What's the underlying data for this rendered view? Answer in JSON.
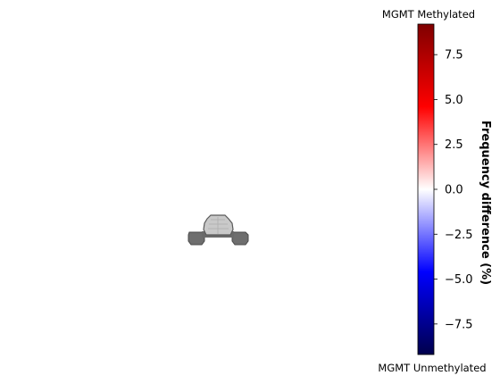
{
  "chart_data": {
    "type": "heatmap",
    "colorbar": {
      "colormap": "seismic",
      "vmin": -9.2,
      "vmax": 9.2,
      "ticks": [
        -7.5,
        -5.0,
        -2.5,
        0.0,
        2.5,
        5.0,
        7.5
      ],
      "tick_labels": [
        "−7.5",
        "−5.0",
        "−2.5",
        "0.0",
        "2.5",
        "5.0",
        "7.5"
      ],
      "label": "Frequency difference (%)",
      "top_label": "MGMT Methylated",
      "bottom_label": "MGMT Unmethylated"
    },
    "image": {
      "description_hidden": "",
      "axes": "off",
      "colors": {
        "dark_gray": "#6e6e6e",
        "light_gray": "#c8c8c8",
        "outline": "#505050"
      }
    }
  }
}
